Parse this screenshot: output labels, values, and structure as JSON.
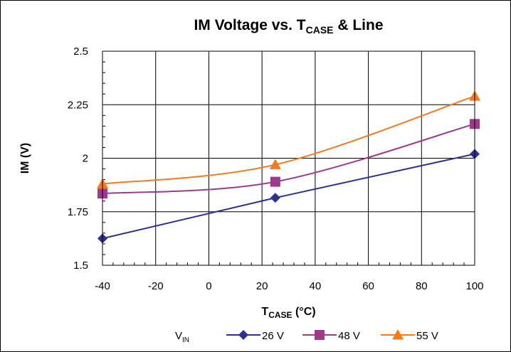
{
  "chart_data": {
    "type": "line",
    "title": {
      "main": "IM Voltage vs. T",
      "sub": "CASE",
      "tail": " & Line"
    },
    "xlabel": {
      "main": "T",
      "sub": "CASE",
      "tail": " (°C)"
    },
    "ylabel": "IM (V)",
    "xlim": [
      -40,
      100
    ],
    "ylim": [
      1.5,
      2.5
    ],
    "x_ticks": [
      -40,
      -20,
      0,
      20,
      40,
      60,
      80,
      100
    ],
    "y_ticks": [
      1.5,
      1.75,
      2,
      2.25,
      2.5
    ],
    "x_tick_labels": [
      "-40",
      "-20",
      "0",
      "20",
      "40",
      "60",
      "80",
      "100"
    ],
    "y_tick_labels": [
      "1.5",
      "1.75",
      "2",
      "2.25",
      "2.5"
    ],
    "grid": true,
    "legend": {
      "title": "V",
      "title_sub": "IN",
      "placement": "bottom"
    },
    "series": [
      {
        "name": "26 V",
        "color": "#2e3192",
        "marker": "diamond",
        "x": [
          -40,
          25,
          100
        ],
        "values": [
          1.625,
          1.815,
          2.02
        ]
      },
      {
        "name": "48 V",
        "color": "#9e3a8c",
        "marker": "square",
        "x": [
          -40,
          25,
          100
        ],
        "values": [
          1.835,
          1.89,
          2.16
        ]
      },
      {
        "name": "55 V",
        "color": "#f47920",
        "marker": "triangle",
        "x": [
          -40,
          25,
          100
        ],
        "values": [
          1.88,
          1.97,
          2.29
        ]
      }
    ]
  }
}
